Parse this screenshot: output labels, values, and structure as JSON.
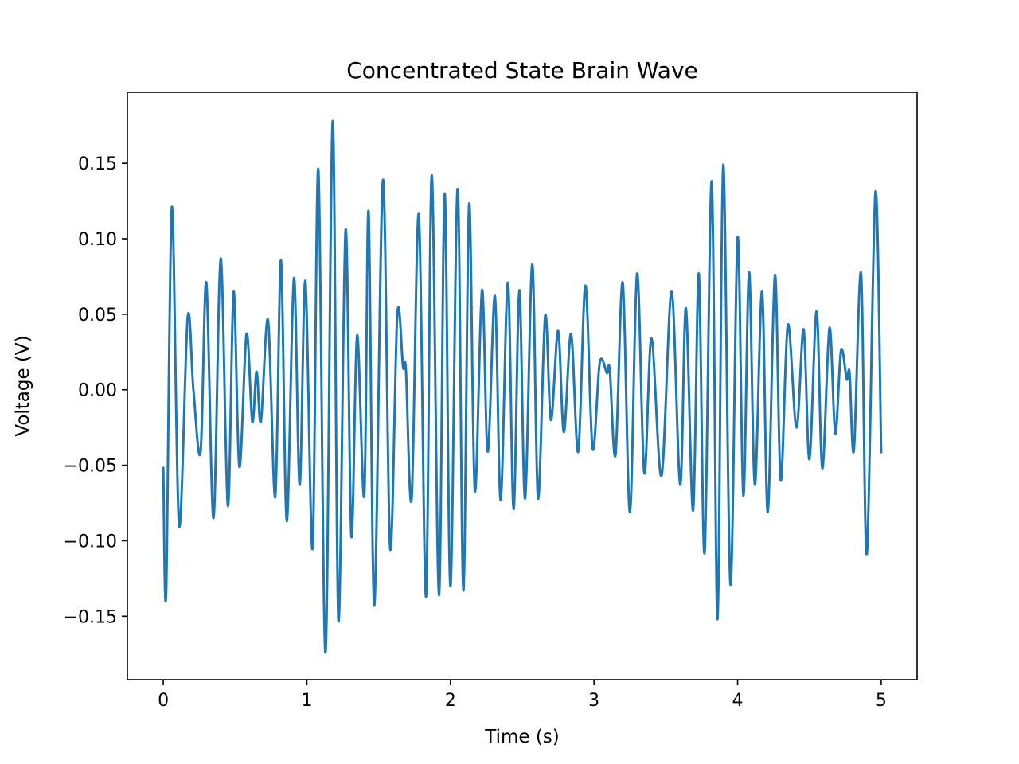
{
  "chart_data": {
    "type": "line",
    "title": "Concentrated State Brain Wave",
    "xlabel": "Time (s)",
    "ylabel": "Voltage (V)",
    "xlim": [
      -0.25,
      5.25
    ],
    "ylim": [
      -0.192,
      0.197
    ],
    "xticks": [
      0,
      1,
      2,
      3,
      4,
      5
    ],
    "xtick_labels": [
      "0",
      "1",
      "2",
      "3",
      "4",
      "5"
    ],
    "yticks": [
      -0.15,
      -0.1,
      -0.05,
      0.0,
      0.05,
      0.1,
      0.15
    ],
    "ytick_labels": [
      "−0.15",
      "−0.10",
      "−0.05",
      "0.00",
      "0.05",
      "0.10",
      "0.15"
    ],
    "grid": false,
    "legend": "none",
    "series": [
      {
        "color": "#1f77b4",
        "x": [
          0.0,
          0.02,
          0.06,
          0.11,
          0.17,
          0.21,
          0.26,
          0.3,
          0.35,
          0.4,
          0.45,
          0.49,
          0.53,
          0.58,
          0.62,
          0.65,
          0.68,
          0.73,
          0.78,
          0.82,
          0.86,
          0.91,
          0.95,
          0.99,
          1.04,
          1.08,
          1.13,
          1.18,
          1.22,
          1.27,
          1.31,
          1.35,
          1.4,
          1.43,
          1.47,
          1.53,
          1.58,
          1.63,
          1.67,
          1.69,
          1.73,
          1.78,
          1.83,
          1.87,
          1.92,
          1.96,
          2.0,
          2.05,
          2.09,
          2.13,
          2.17,
          2.22,
          2.26,
          2.31,
          2.35,
          2.4,
          2.44,
          2.48,
          2.52,
          2.57,
          2.61,
          2.66,
          2.7,
          2.75,
          2.79,
          2.84,
          2.89,
          2.94,
          2.99,
          3.04,
          3.09,
          3.11,
          3.15,
          3.2,
          3.25,
          3.3,
          3.35,
          3.4,
          3.47,
          3.54,
          3.6,
          3.64,
          3.69,
          3.73,
          3.77,
          3.82,
          3.86,
          3.9,
          3.95,
          4.0,
          4.04,
          4.08,
          4.12,
          4.17,
          4.21,
          4.26,
          4.3,
          4.35,
          4.41,
          4.46,
          4.5,
          4.55,
          4.59,
          4.64,
          4.68,
          4.72,
          4.76,
          4.78,
          4.81,
          4.86,
          4.9,
          4.96,
          5.0
        ],
        "y": [
          -0.051,
          -0.135,
          0.121,
          -0.09,
          0.048,
          0.0,
          -0.041,
          0.071,
          -0.085,
          0.087,
          -0.077,
          0.065,
          -0.051,
          0.037,
          -0.021,
          0.012,
          -0.021,
          0.046,
          -0.071,
          0.086,
          -0.087,
          0.074,
          -0.063,
          0.072,
          -0.105,
          0.146,
          -0.174,
          0.178,
          -0.153,
          0.106,
          -0.097,
          0.036,
          -0.07,
          0.118,
          -0.143,
          0.139,
          -0.105,
          0.05,
          0.015,
          0.013,
          -0.072,
          0.116,
          -0.137,
          0.142,
          -0.136,
          0.13,
          -0.13,
          0.133,
          -0.133,
          0.123,
          -0.067,
          0.066,
          -0.041,
          0.062,
          -0.073,
          0.071,
          -0.079,
          0.066,
          -0.072,
          0.083,
          -0.072,
          0.049,
          -0.02,
          0.039,
          -0.028,
          0.037,
          -0.041,
          0.069,
          -0.039,
          0.018,
          0.011,
          0.013,
          -0.043,
          0.071,
          -0.081,
          0.077,
          -0.055,
          0.034,
          -0.057,
          0.065,
          -0.063,
          0.054,
          -0.08,
          0.077,
          -0.108,
          0.138,
          -0.152,
          0.149,
          -0.129,
          0.101,
          -0.07,
          0.078,
          -0.063,
          0.065,
          -0.081,
          0.076,
          -0.06,
          0.043,
          -0.025,
          0.04,
          -0.046,
          0.052,
          -0.052,
          0.041,
          -0.029,
          0.026,
          0.007,
          0.011,
          -0.04,
          0.077,
          -0.109,
          0.131,
          -0.042
        ]
      }
    ]
  }
}
